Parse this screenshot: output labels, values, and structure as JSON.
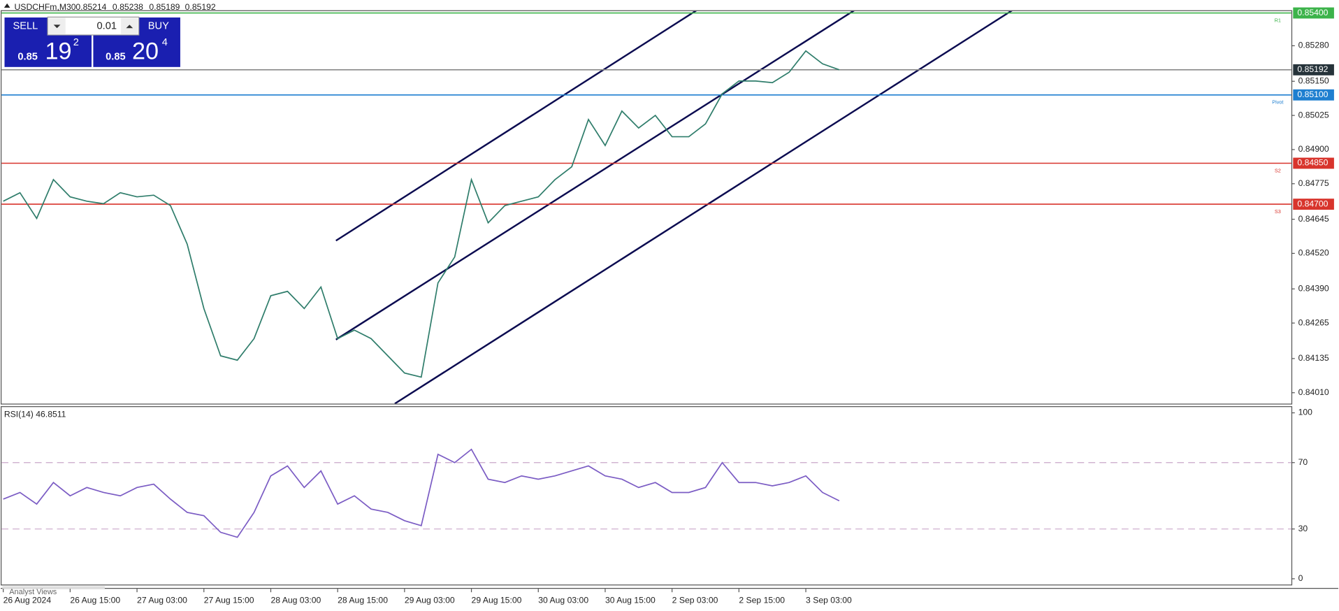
{
  "header": {
    "symbol": "USDCHFm,M30",
    "open": 0.85214,
    "high": 0.85238,
    "low": 0.85189,
    "close": 0.85192
  },
  "trade_panel": {
    "sell": "SELL",
    "buy": "BUY",
    "lot": "0.01",
    "sell_price": {
      "big": "0.85",
      "main": "19",
      "sup": "2"
    },
    "buy_price": {
      "big": "0.85",
      "main": "20",
      "sup": "4"
    }
  },
  "footer_tab": "Analyst Views",
  "chart_data": [
    {
      "type": "line",
      "title": "USDCHFm,M30",
      "categories": [
        "26 Aug 2024",
        null,
        null,
        null,
        "26 Aug 15:00",
        null,
        null,
        null,
        "27 Aug 03:00",
        null,
        null,
        null,
        "27 Aug 15:00",
        null,
        null,
        null,
        "28 Aug 03:00",
        null,
        null,
        null,
        "28 Aug 15:00",
        null,
        null,
        null,
        "29 Aug 03:00",
        null,
        null,
        null,
        "29 Aug 15:00",
        null,
        null,
        null,
        "30 Aug 03:00",
        null,
        null,
        null,
        "30 Aug 15:00",
        null,
        null,
        null,
        "2 Sep 03:00",
        null,
        null,
        null,
        "2 Sep 15:00",
        null,
        null,
        null,
        "3 Sep 03:00",
        null,
        null
      ],
      "series": [
        {
          "name": "USDCHFm",
          "color": "#2f7d6b",
          "values": [
            0.84711,
            0.84742,
            0.84648,
            0.8479,
            0.84727,
            0.84711,
            0.84702,
            0.84742,
            0.84727,
            0.84733,
            0.84695,
            0.84554,
            0.84318,
            0.84145,
            0.84129,
            0.84208,
            0.84365,
            0.84381,
            0.84318,
            0.84397,
            0.84208,
            0.84239,
            0.84208,
            0.84145,
            0.84082,
            0.84067,
            0.84412,
            0.84507,
            0.8479,
            0.84632,
            0.84695,
            0.84711,
            0.84727,
            0.8479,
            0.84837,
            0.8501,
            0.84915,
            0.85041,
            0.84979,
            0.85025,
            0.84947,
            0.84947,
            0.84994,
            0.85104,
            0.85151,
            0.85151,
            0.85145,
            0.85183,
            0.85261,
            0.85214,
            0.85192
          ]
        }
      ],
      "ylim": [
        0.8397,
        0.8541
      ],
      "yticks": [
        {
          "value": 0.8401,
          "label": "0.84010"
        },
        0.84135,
        0.84265,
        {
          "value": 0.8439,
          "label": "0.84390"
        },
        {
          "value": 0.8452,
          "label": "0.84520"
        },
        0.84645,
        0.84775,
        {
          "value": 0.849,
          "label": "0.84900"
        },
        0.85025,
        {
          "value": 0.8515,
          "label": "0.85150"
        },
        {
          "value": 0.8528,
          "label": "0.85280"
        }
      ],
      "levels": [
        {
          "value": 0.854,
          "label": "0.85400",
          "name": "R1",
          "color": "#3cb34a"
        },
        {
          "value": 0.85192,
          "label": "0.85192",
          "color": "#888888"
        },
        {
          "value": 0.851,
          "label": "0.85100",
          "name": "Pivot",
          "color": "#1e7fd0"
        },
        {
          "value": 0.8485,
          "label": "0.84850",
          "name": "S2",
          "color": "#d8342c"
        },
        {
          "value": 0.847,
          "label": "0.84700",
          "name": "S3",
          "color": "#d8342c"
        }
      ]
    },
    {
      "type": "line",
      "title": "RSI(14) 46.8511",
      "series": [
        {
          "name": "RSI(14)",
          "color": "#7b5cc4",
          "values": [
            48,
            52,
            45,
            58,
            50,
            55,
            52,
            50,
            55,
            57,
            48,
            40,
            38,
            28,
            25,
            40,
            62,
            68,
            55,
            65,
            45,
            50,
            42,
            40,
            35,
            32,
            75,
            70,
            78,
            60,
            58,
            62,
            60,
            62,
            65,
            68,
            62,
            60,
            55,
            58,
            52,
            52,
            55,
            70,
            58,
            58,
            56,
            58,
            62,
            52,
            47
          ]
        }
      ],
      "ylim": [
        -4,
        104
      ],
      "yticks": [
        0,
        30,
        70,
        100
      ],
      "dashed_levels": [
        30,
        70
      ]
    }
  ]
}
